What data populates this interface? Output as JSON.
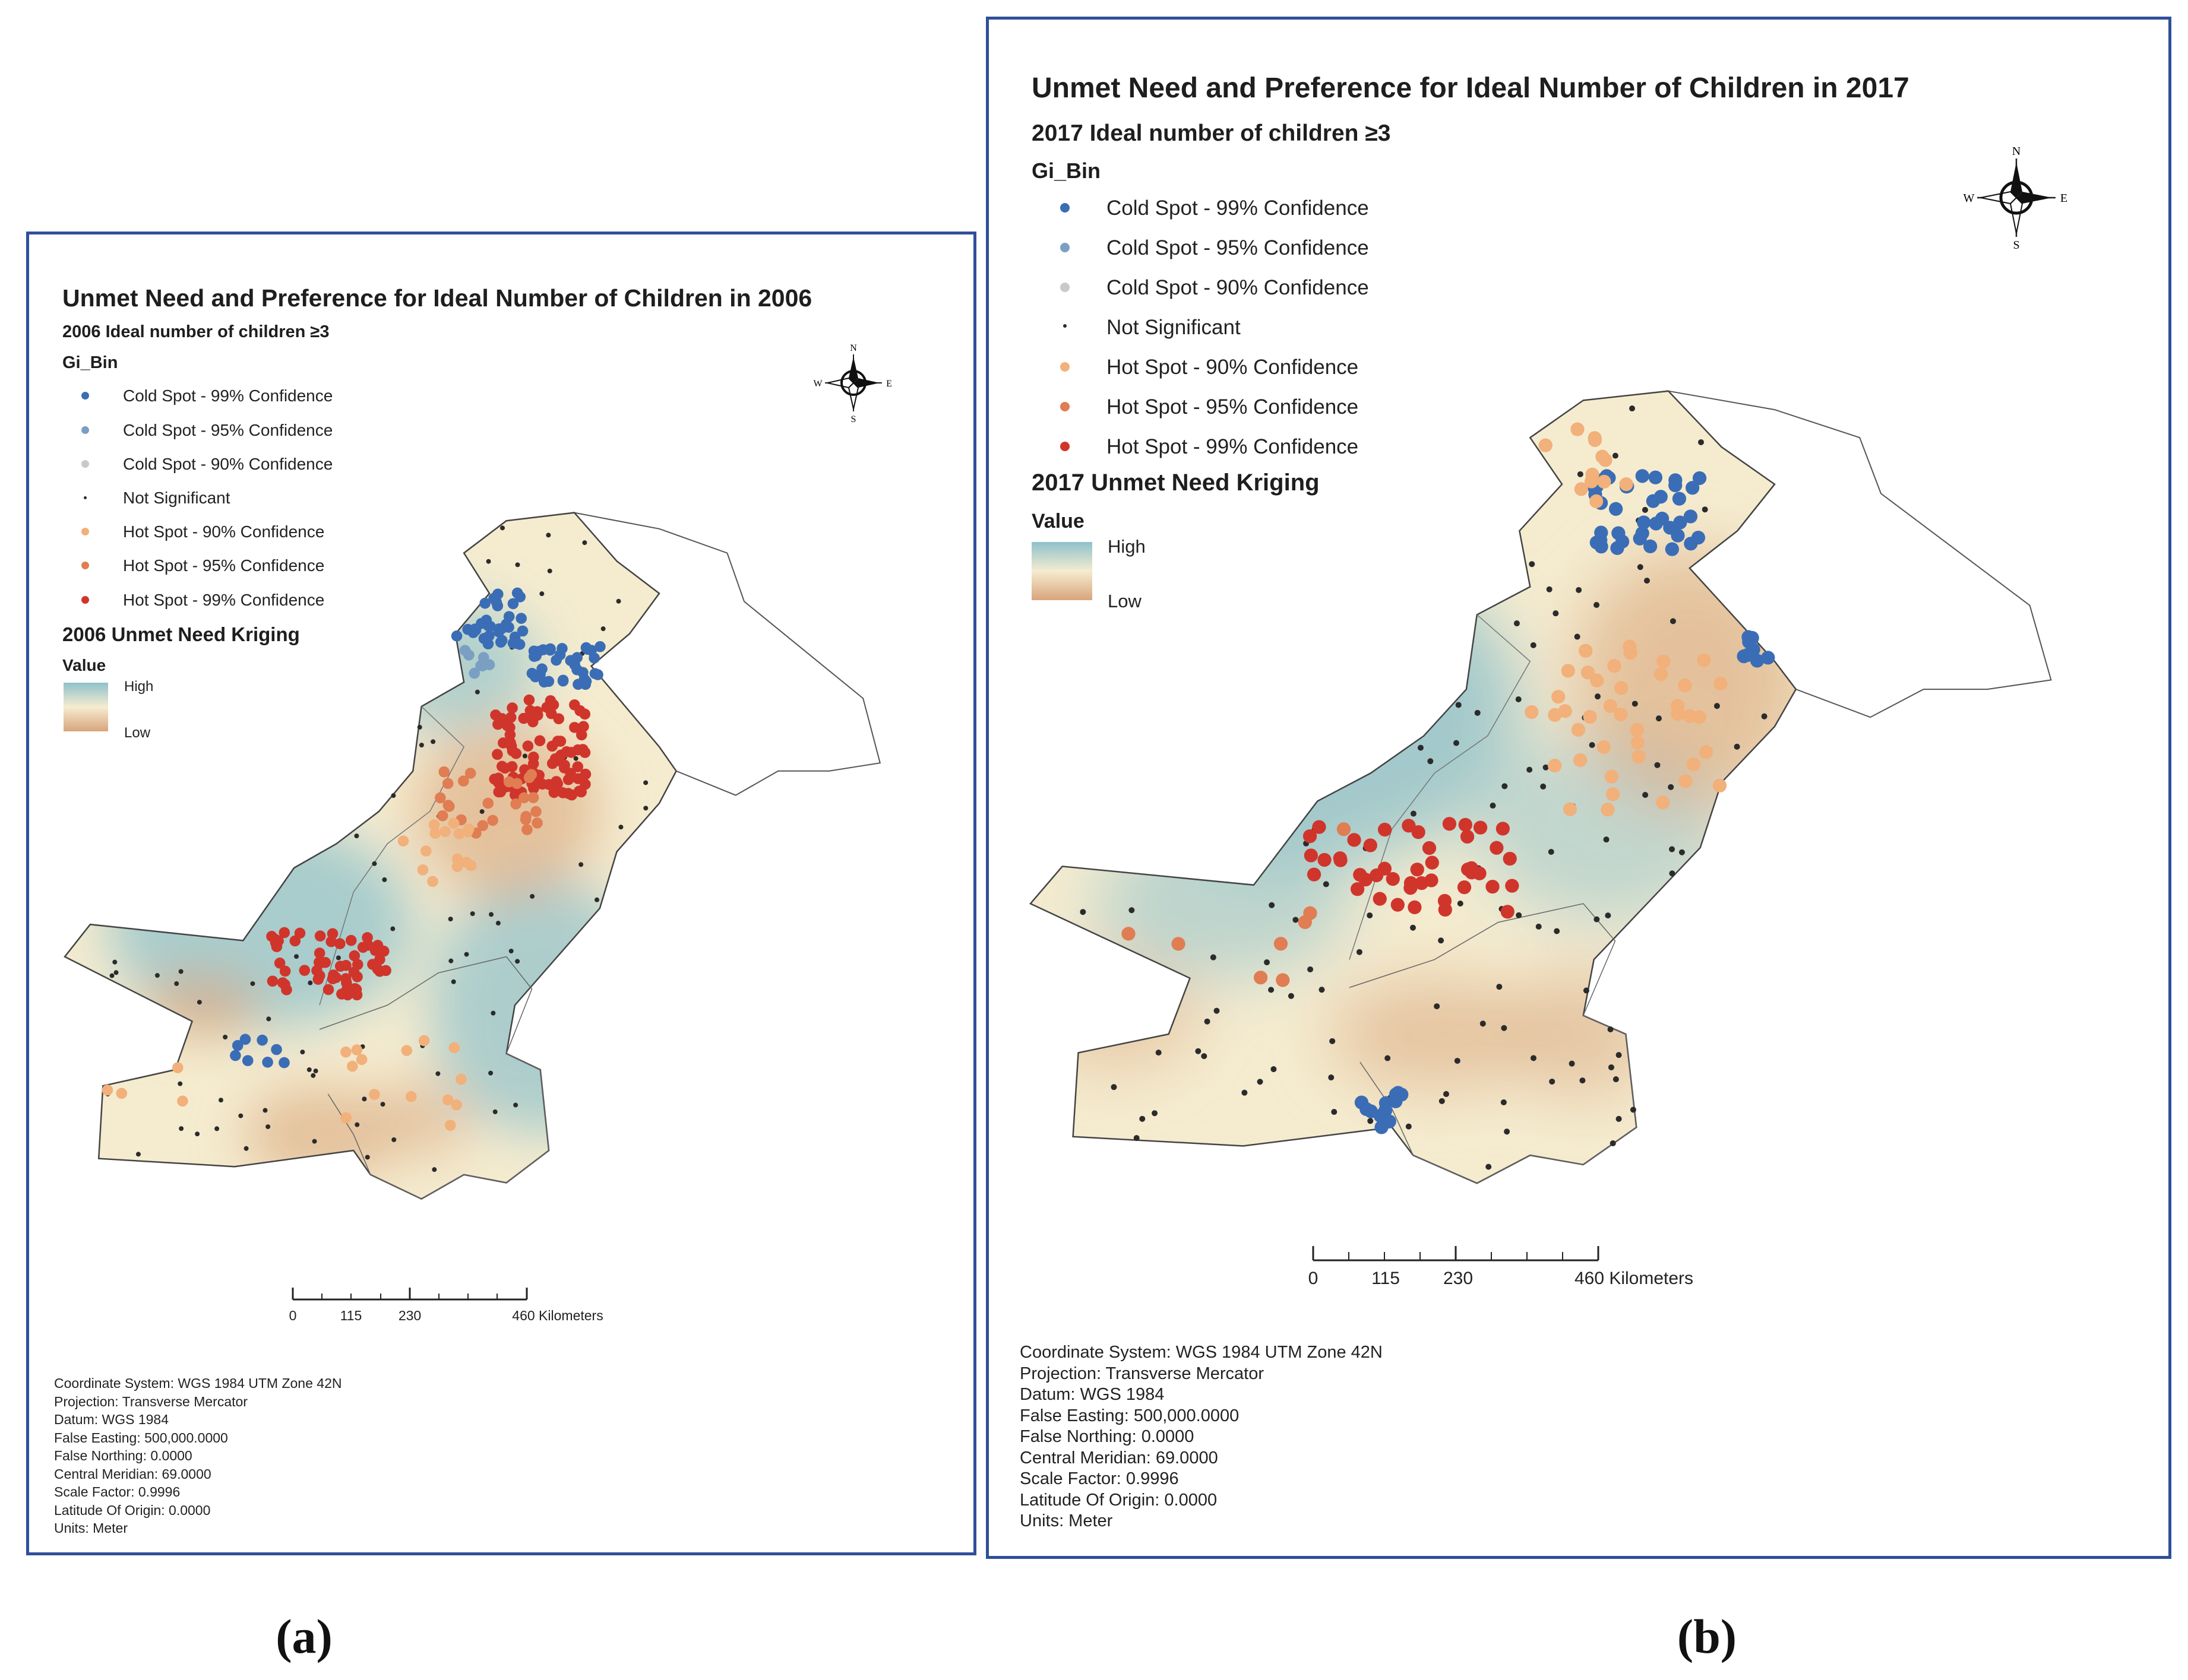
{
  "colors": {
    "frame": "#2f4f9a",
    "cold99": "#3a6db5",
    "cold95": "#7b9fc3",
    "cold90": "#c9c9c9",
    "notsig": "#2b2b2b",
    "hot90": "#f2b07a",
    "hot95": "#e07d53",
    "hot99": "#d0352b",
    "kriging_high": "#8fc1cb",
    "kriging_mid": "#f5ecd0",
    "kriging_low": "#d8a57c"
  },
  "panels": [
    {
      "title": "Unmet Need and Preference for Ideal Number of Children in 2006",
      "subtitle": "2006 Ideal number of children ≥3",
      "field": "Gi_Bin",
      "legend": [
        {
          "label": "Cold Spot - 99% Confidence",
          "color_key": "cold99"
        },
        {
          "label": "Cold Spot - 95% Confidence",
          "color_key": "cold95"
        },
        {
          "label": "Cold Spot - 90% Confidence",
          "color_key": "cold90"
        },
        {
          "label": "Not Significant",
          "color_key": "notsig"
        },
        {
          "label": "Hot Spot - 90% Confidence",
          "color_key": "hot90"
        },
        {
          "label": "Hot Spot - 95% Confidence",
          "color_key": "hot95"
        },
        {
          "label": "Hot Spot - 99% Confidence",
          "color_key": "hot99"
        }
      ],
      "kriging_title": "2006 Unmet Need Kriging",
      "value_label": "Value",
      "high_label": "High",
      "low_label": "Low",
      "scale": {
        "ticks": [
          "0",
          "115",
          "230",
          "460 Kilometers"
        ]
      },
      "compass": {
        "n": "N",
        "s": "S",
        "e": "E",
        "w": "W"
      },
      "coordinate_info": [
        "Coordinate System: WGS 1984 UTM Zone 42N",
        "Projection: Transverse Mercator",
        "Datum: WGS 1984",
        "False Easting: 500,000.0000",
        "False Northing: 0.0000",
        "Central Meridian: 69.0000",
        "Scale Factor: 0.9996",
        "Latitude Of Origin: 0.0000",
        "Units: Meter"
      ],
      "caption": "(a)"
    },
    {
      "title": "Unmet Need and Preference for Ideal Number of Children in 2017",
      "subtitle": "2017 Ideal number of children ≥3",
      "field": "Gi_Bin",
      "legend": [
        {
          "label": "Cold Spot - 99% Confidence",
          "color_key": "cold99"
        },
        {
          "label": "Cold Spot - 95% Confidence",
          "color_key": "cold95"
        },
        {
          "label": "Cold Spot - 90% Confidence",
          "color_key": "cold90"
        },
        {
          "label": "Not Significant",
          "color_key": "notsig"
        },
        {
          "label": "Hot Spot - 90% Confidence",
          "color_key": "hot90"
        },
        {
          "label": "Hot Spot - 95% Confidence",
          "color_key": "hot95"
        },
        {
          "label": "Hot Spot - 99% Confidence",
          "color_key": "hot99"
        }
      ],
      "kriging_title": "2017 Unmet Need Kriging",
      "value_label": "Value",
      "high_label": "High",
      "low_label": "Low",
      "scale": {
        "ticks": [
          "0",
          "115",
          "230",
          "460 Kilometers"
        ]
      },
      "compass": {
        "n": "N",
        "s": "S",
        "e": "E",
        "w": "W"
      },
      "coordinate_info": [
        "Coordinate System: WGS 1984 UTM Zone 42N",
        "Projection: Transverse Mercator",
        "Datum: WGS 1984",
        "False Easting: 500,000.0000",
        "False Northing: 0.0000",
        "Central Meridian: 69.0000",
        "Scale Factor: 0.9996",
        "Latitude Of Origin: 0.0000",
        "Units: Meter"
      ],
      "caption": "(b)"
    }
  ]
}
